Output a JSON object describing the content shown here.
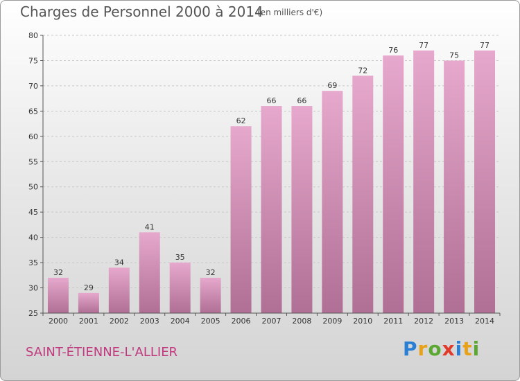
{
  "title": "Charges de Personnel 2000 à 2014",
  "subtitle": "(en milliers d'€)",
  "commune": "SAINT-ÉTIENNE-L'ALLIER",
  "logo": "Proxiti",
  "colors": {
    "bar_top": "#e6a8cc",
    "bar_bottom": "#b06f95",
    "grid": "#c8c8c8",
    "commune": "#c0397e"
  },
  "chart_data": {
    "type": "bar",
    "categories": [
      "2000",
      "2001",
      "2002",
      "2003",
      "2004",
      "2005",
      "2006",
      "2007",
      "2008",
      "2009",
      "2010",
      "2011",
      "2012",
      "2013",
      "2014"
    ],
    "values": [
      32,
      29,
      34,
      41,
      35,
      32,
      62,
      66,
      66,
      69,
      72,
      76,
      77,
      75,
      77
    ],
    "ylim": [
      25,
      80
    ],
    "yticks": [
      25,
      30,
      35,
      40,
      45,
      50,
      55,
      60,
      65,
      70,
      75,
      80
    ],
    "grid": true
  }
}
